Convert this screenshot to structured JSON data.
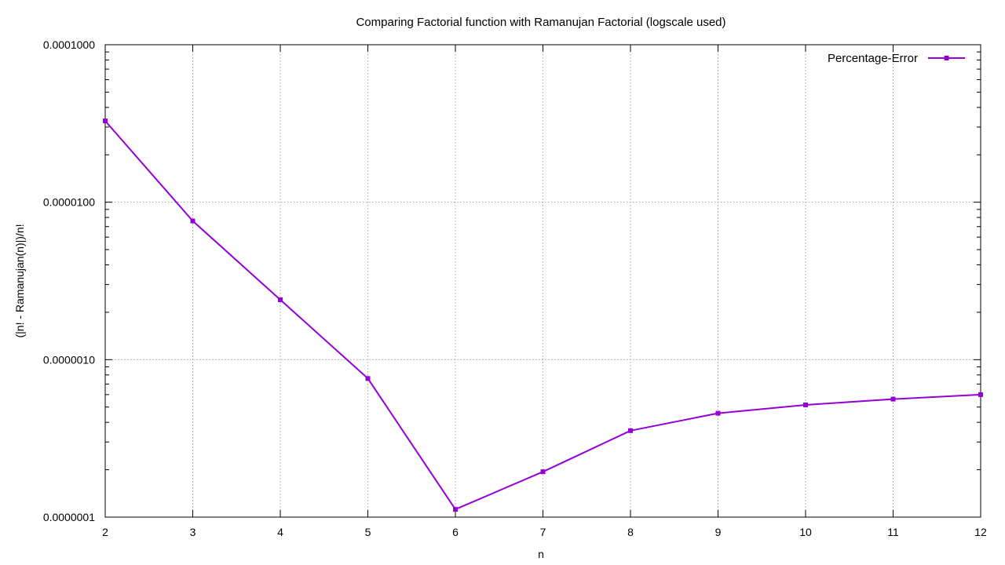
{
  "chart_data": {
    "type": "line",
    "title": "Comparing Factorial function with Ramanujan Factorial (logscale used)",
    "xlabel": "n",
    "ylabel": "(|n! - Ramanujan(n)|)/n!",
    "x": [
      2,
      3,
      4,
      5,
      6,
      7,
      8,
      9,
      10,
      11,
      12
    ],
    "xlim": [
      2,
      12
    ],
    "ylim": [
      1e-07,
      0.0001
    ],
    "yscale": "log",
    "yticks": [
      {
        "value": 1e-07,
        "label": "0.0000001"
      },
      {
        "value": 1e-06,
        "label": "0.0000010"
      },
      {
        "value": 1e-05,
        "label": "0.0000100"
      },
      {
        "value": 0.0001,
        "label": "0.0001000"
      }
    ],
    "xticks": [
      "2",
      "3",
      "4",
      "5",
      "6",
      "7",
      "8",
      "9",
      "10",
      "11",
      "12"
    ],
    "grid": true,
    "legend_position": "top-right",
    "series": [
      {
        "name": "Percentage-Error",
        "color": "#9400d3",
        "marker": "filled-square",
        "values": [
          3.28e-05,
          7.6e-06,
          2.4e-06,
          7.6e-07,
          1.12e-07,
          1.94e-07,
          3.54e-07,
          4.57e-07,
          5.16e-07,
          5.62e-07,
          6e-07
        ]
      }
    ]
  }
}
